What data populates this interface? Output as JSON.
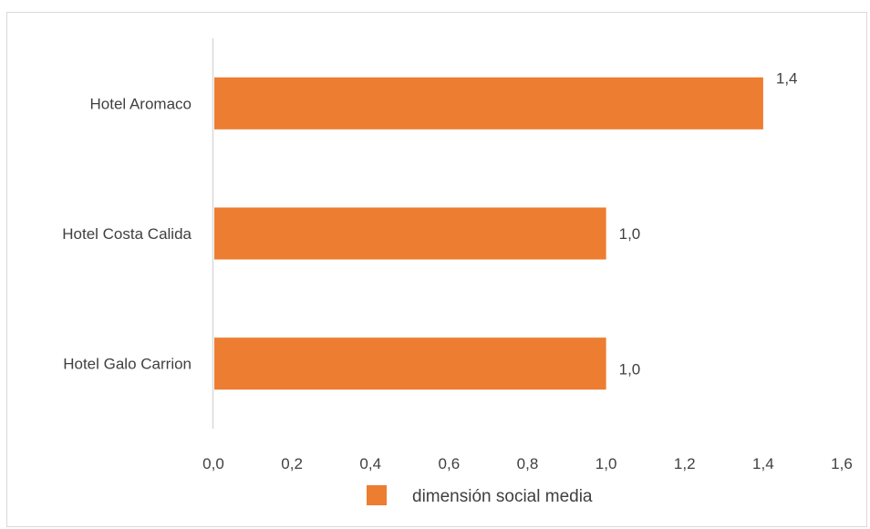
{
  "chart_data": {
    "type": "bar",
    "orientation": "horizontal",
    "title": "",
    "xlabel": "",
    "ylabel": "",
    "categories": [
      "Hotel Aromaco",
      "Hotel Costa Calida",
      "Hotel Galo Carrion"
    ],
    "series": [
      {
        "name": "dimensión social media",
        "values": [
          1.4,
          1.0,
          1.0
        ],
        "value_labels": [
          "1,4",
          "1,0",
          "1,0"
        ],
        "color": "#ED7D31"
      }
    ],
    "xlim": [
      0,
      1.6
    ],
    "xticks": [
      0,
      0.2,
      0.4,
      0.6,
      0.8,
      1.0,
      1.2,
      1.4,
      1.6
    ],
    "xtick_labels": [
      "0,0",
      "0,2",
      "0,4",
      "0,6",
      "0,8",
      "1,0",
      "1,2",
      "1,4",
      "1,6"
    ],
    "grid": false,
    "legend": {
      "position": "bottom",
      "entries": [
        "dimensión social media"
      ]
    }
  },
  "colors": {
    "bar": "#ED7D31",
    "axis": "#d9d9d9",
    "text": "#404040"
  }
}
